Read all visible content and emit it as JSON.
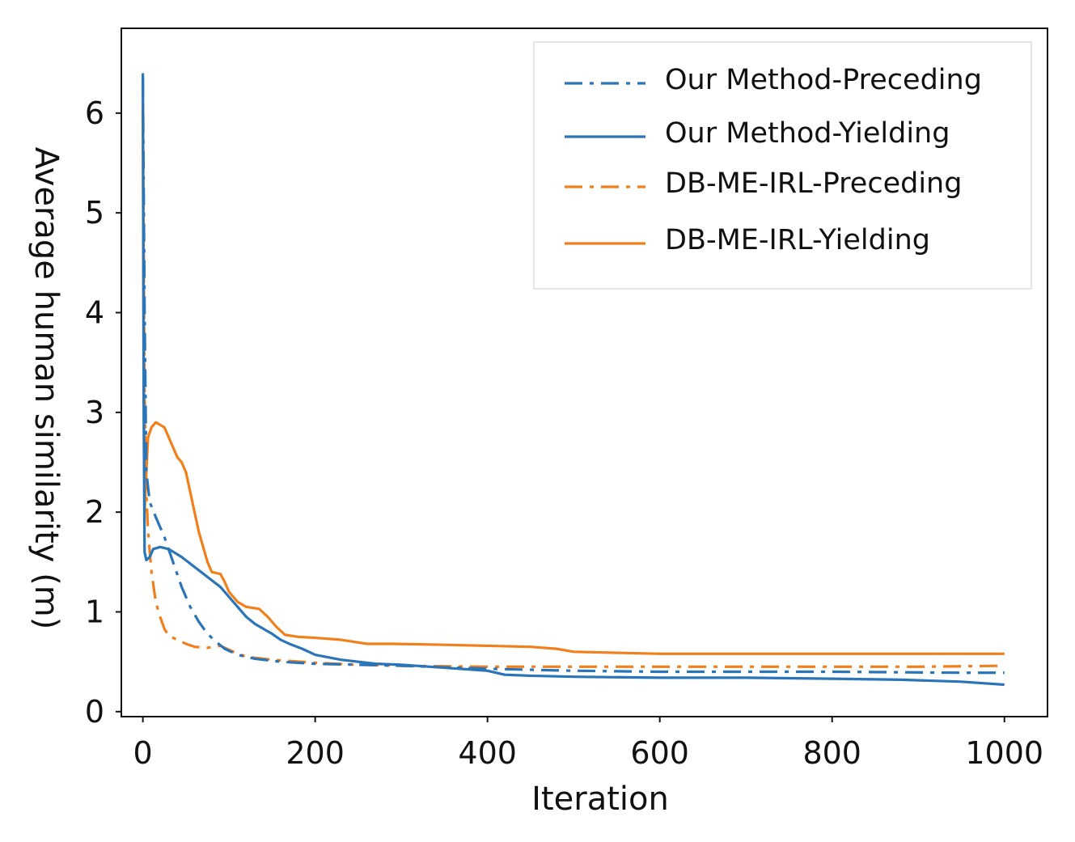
{
  "chart_data": {
    "type": "line",
    "title": "",
    "xlabel": "Iteration",
    "ylabel": "Average human similarity (m)",
    "xlim": [
      -25,
      1050
    ],
    "ylim": [
      -0.05,
      6.85
    ],
    "xticks": [
      0,
      200,
      400,
      600,
      800,
      1000
    ],
    "yticks": [
      0,
      1,
      2,
      3,
      4,
      5,
      6
    ],
    "legend_position": "top-right",
    "series": [
      {
        "name": "Our Method-Preceding",
        "color": "#2a75b8",
        "style": "dashdot",
        "points": [
          [
            0,
            6.35
          ],
          [
            2,
            4.0
          ],
          [
            4,
            2.4
          ],
          [
            8,
            2.1
          ],
          [
            15,
            1.95
          ],
          [
            25,
            1.75
          ],
          [
            35,
            1.5
          ],
          [
            45,
            1.25
          ],
          [
            55,
            1.05
          ],
          [
            65,
            0.9
          ],
          [
            75,
            0.78
          ],
          [
            85,
            0.7
          ],
          [
            95,
            0.63
          ],
          [
            110,
            0.57
          ],
          [
            130,
            0.53
          ],
          [
            160,
            0.5
          ],
          [
            200,
            0.48
          ],
          [
            250,
            0.47
          ],
          [
            300,
            0.46
          ],
          [
            400,
            0.43
          ],
          [
            500,
            0.41
          ],
          [
            600,
            0.4
          ],
          [
            800,
            0.4
          ],
          [
            950,
            0.39
          ],
          [
            1000,
            0.39
          ]
        ]
      },
      {
        "name": "Our Method-Yielding",
        "color": "#2a75b8",
        "style": "solid",
        "points": [
          [
            0,
            6.4
          ],
          [
            1,
            3.0
          ],
          [
            2,
            1.6
          ],
          [
            4,
            1.52
          ],
          [
            8,
            1.55
          ],
          [
            12,
            1.63
          ],
          [
            20,
            1.65
          ],
          [
            30,
            1.63
          ],
          [
            45,
            1.55
          ],
          [
            60,
            1.45
          ],
          [
            75,
            1.35
          ],
          [
            90,
            1.25
          ],
          [
            100,
            1.15
          ],
          [
            110,
            1.05
          ],
          [
            120,
            0.95
          ],
          [
            130,
            0.88
          ],
          [
            140,
            0.83
          ],
          [
            150,
            0.78
          ],
          [
            160,
            0.72
          ],
          [
            170,
            0.68
          ],
          [
            185,
            0.63
          ],
          [
            200,
            0.57
          ],
          [
            230,
            0.52
          ],
          [
            270,
            0.48
          ],
          [
            300,
            0.47
          ],
          [
            350,
            0.44
          ],
          [
            400,
            0.41
          ],
          [
            420,
            0.37
          ],
          [
            450,
            0.36
          ],
          [
            500,
            0.35
          ],
          [
            600,
            0.34
          ],
          [
            700,
            0.34
          ],
          [
            800,
            0.33
          ],
          [
            880,
            0.32
          ],
          [
            950,
            0.3
          ],
          [
            1000,
            0.27
          ]
        ]
      },
      {
        "name": "DB-ME-IRL-Preceding",
        "color": "#f07f1c",
        "style": "dashdot",
        "points": [
          [
            0,
            6.05
          ],
          [
            2,
            3.2
          ],
          [
            4,
            2.2
          ],
          [
            6,
            1.8
          ],
          [
            10,
            1.4
          ],
          [
            15,
            1.1
          ],
          [
            20,
            0.95
          ],
          [
            25,
            0.83
          ],
          [
            30,
            0.76
          ],
          [
            40,
            0.72
          ],
          [
            50,
            0.68
          ],
          [
            60,
            0.65
          ],
          [
            75,
            0.64
          ],
          [
            90,
            0.66
          ],
          [
            105,
            0.6
          ],
          [
            120,
            0.55
          ],
          [
            150,
            0.52
          ],
          [
            200,
            0.49
          ],
          [
            250,
            0.47
          ],
          [
            300,
            0.46
          ],
          [
            400,
            0.45
          ],
          [
            500,
            0.45
          ],
          [
            700,
            0.45
          ],
          [
            900,
            0.45
          ],
          [
            1000,
            0.46
          ]
        ]
      },
      {
        "name": "DB-ME-IRL-Yielding",
        "color": "#f07f1c",
        "style": "solid",
        "points": [
          [
            0,
            6.05
          ],
          [
            1,
            3.5
          ],
          [
            2,
            2.0
          ],
          [
            4,
            2.4
          ],
          [
            6,
            2.75
          ],
          [
            10,
            2.85
          ],
          [
            15,
            2.9
          ],
          [
            25,
            2.85
          ],
          [
            30,
            2.75
          ],
          [
            40,
            2.55
          ],
          [
            45,
            2.5
          ],
          [
            50,
            2.4
          ],
          [
            55,
            2.2
          ],
          [
            60,
            2.0
          ],
          [
            65,
            1.8
          ],
          [
            70,
            1.65
          ],
          [
            75,
            1.5
          ],
          [
            80,
            1.4
          ],
          [
            90,
            1.38
          ],
          [
            95,
            1.3
          ],
          [
            100,
            1.2
          ],
          [
            110,
            1.1
          ],
          [
            120,
            1.05
          ],
          [
            135,
            1.03
          ],
          [
            145,
            0.95
          ],
          [
            155,
            0.85
          ],
          [
            165,
            0.77
          ],
          [
            180,
            0.75
          ],
          [
            200,
            0.74
          ],
          [
            230,
            0.72
          ],
          [
            260,
            0.68
          ],
          [
            290,
            0.68
          ],
          [
            350,
            0.67
          ],
          [
            400,
            0.66
          ],
          [
            450,
            0.65
          ],
          [
            480,
            0.63
          ],
          [
            500,
            0.6
          ],
          [
            550,
            0.59
          ],
          [
            600,
            0.58
          ],
          [
            700,
            0.58
          ],
          [
            800,
            0.58
          ],
          [
            900,
            0.58
          ],
          [
            1000,
            0.58
          ]
        ]
      }
    ]
  }
}
